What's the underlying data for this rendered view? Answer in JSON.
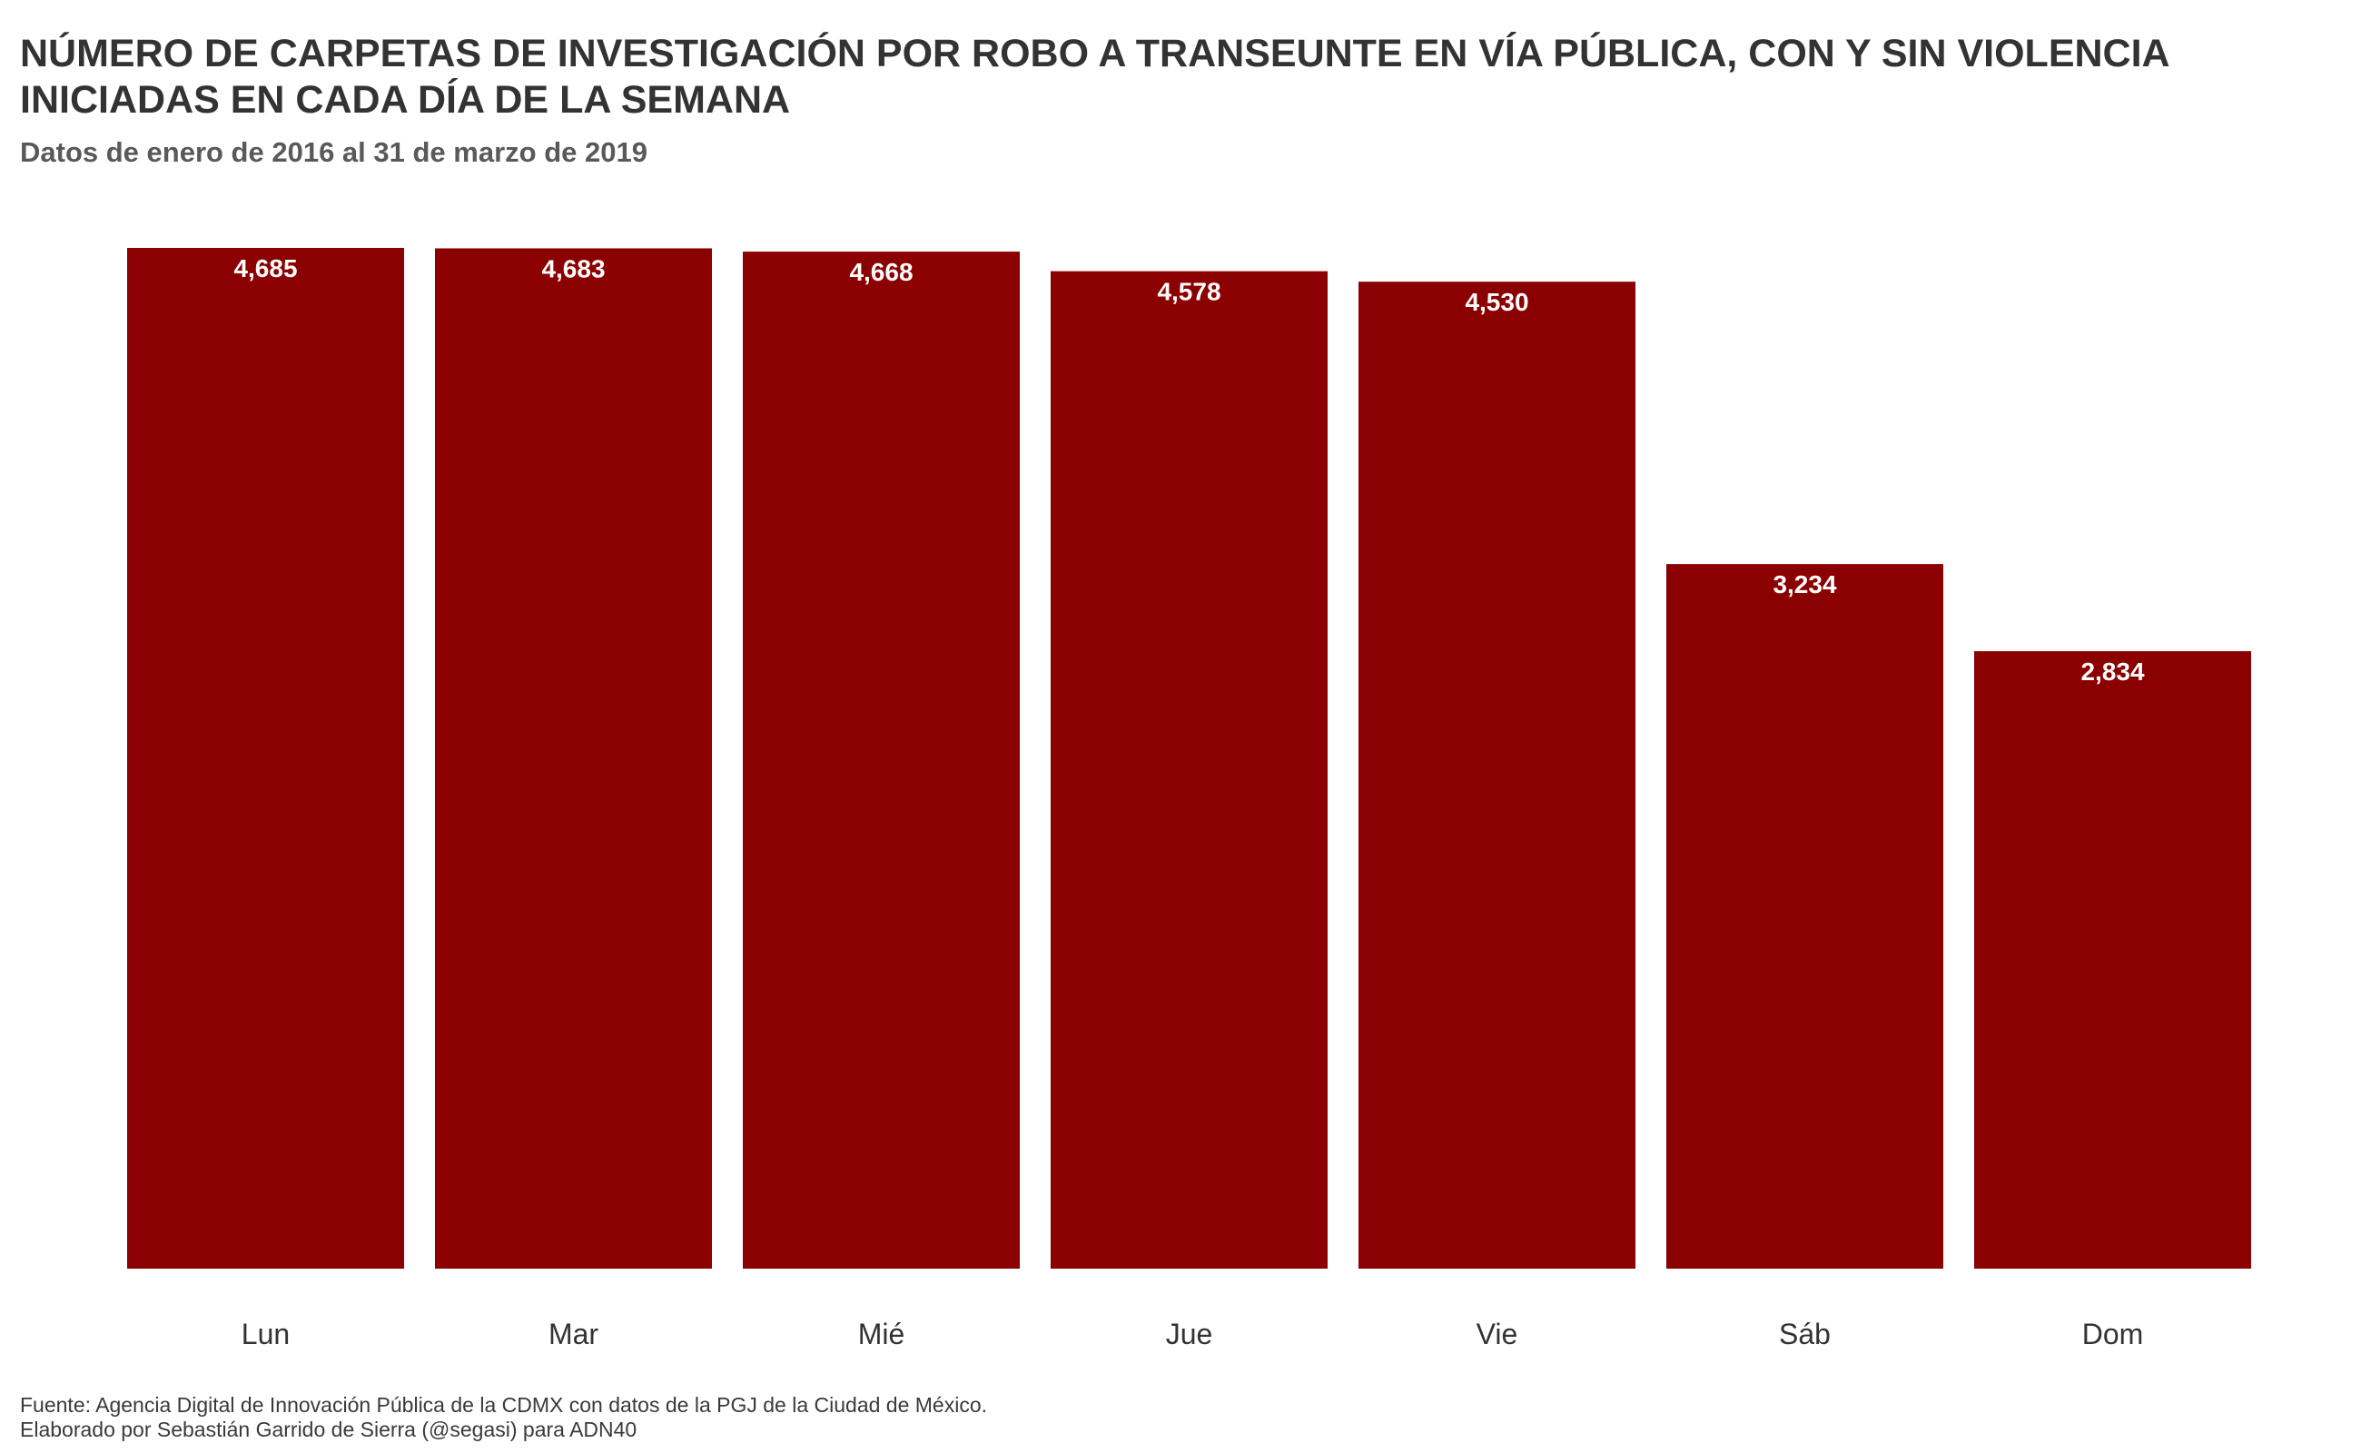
{
  "chart_data": {
    "type": "bar",
    "title": [
      "NÚMERO DE CARPETAS DE INVESTIGACIÓN POR ROBO A TRANSEUNTE EN VÍA PÚBLICA, CON Y SIN VIOLENCIA",
      "INICIADAS EN CADA DÍA DE LA SEMANA"
    ],
    "subtitle": "Datos de enero de 2016 al 31 de marzo de 2019",
    "categories": [
      "Lun",
      "Mar",
      "Mié",
      "Jue",
      "Vie",
      "Sáb",
      "Dom"
    ],
    "values": [
      4685,
      4683,
      4668,
      4578,
      4530,
      3234,
      2834
    ],
    "value_labels": [
      "4,685",
      "4,683",
      "4,668",
      "4,578",
      "4,530",
      "3,234",
      "2,834"
    ],
    "ylim": [
      0,
      4685
    ],
    "grid": false,
    "y_axis_visible": false,
    "bar_color": "#8b0000",
    "label_color": "#ffffff",
    "caption": [
      "Fuente: Agencia Digital de Innovación Pública de la CDMX con datos de la PGJ de la Ciudad de México.",
      "Elaborado por Sebastián Garrido de Sierra (@segasi) para ADN40"
    ]
  }
}
